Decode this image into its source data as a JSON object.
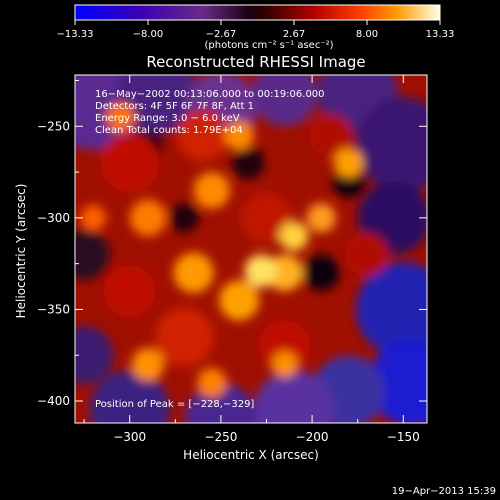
{
  "chart_data": {
    "type": "heatmap",
    "title": "Reconstructed RHESSI Image",
    "xlabel": "Heliocentric X (arcsec)",
    "ylabel": "Heliocentric Y (arcsec)",
    "xlim": [
      -330,
      -137
    ],
    "ylim": [
      -412,
      -222
    ],
    "x_ticks": [
      -300,
      -250,
      -200,
      -150
    ],
    "y_ticks": [
      -250,
      -300,
      -350,
      -400
    ],
    "x_tick_labels": [
      "−300",
      "−250",
      "−200",
      "−150"
    ],
    "y_tick_labels": [
      "−250",
      "−300",
      "−350",
      "−400"
    ],
    "colorbar": {
      "ticks": [
        -13.33,
        -8.0,
        -2.67,
        2.67,
        8.0,
        13.33
      ],
      "tick_labels": [
        "−13.33",
        "−8.00",
        "−2.67",
        "2.67",
        "8.00",
        "13.33"
      ],
      "range": [
        -13.33,
        13.33
      ],
      "unit_label": "(photons cm⁻² s⁻¹ asec⁻²)"
    },
    "annotations": [
      "16−May−2002 00:13:06.000 to 00:19:06.000",
      "Detectors: 4F 5F 6F 7F 8F, Att 1",
      "Energy Range: 3.0 − 6.0 keV",
      "Clean     Total counts: 1.79E+04"
    ],
    "peak_label": "Position of Peak = [−228,−329]",
    "peak": [
      -228,
      -329
    ],
    "colors": {
      "stops": [
        "#0000ff",
        "#3a00b4",
        "#5a1e8e",
        "#7a3c78",
        "#000000",
        "#4a0000",
        "#b00000",
        "#ff3c00",
        "#ff9600",
        "#ffd040",
        "#ffffe8"
      ]
    }
  },
  "footer": {
    "timestamp": "19−Apr−2013 15:39"
  }
}
